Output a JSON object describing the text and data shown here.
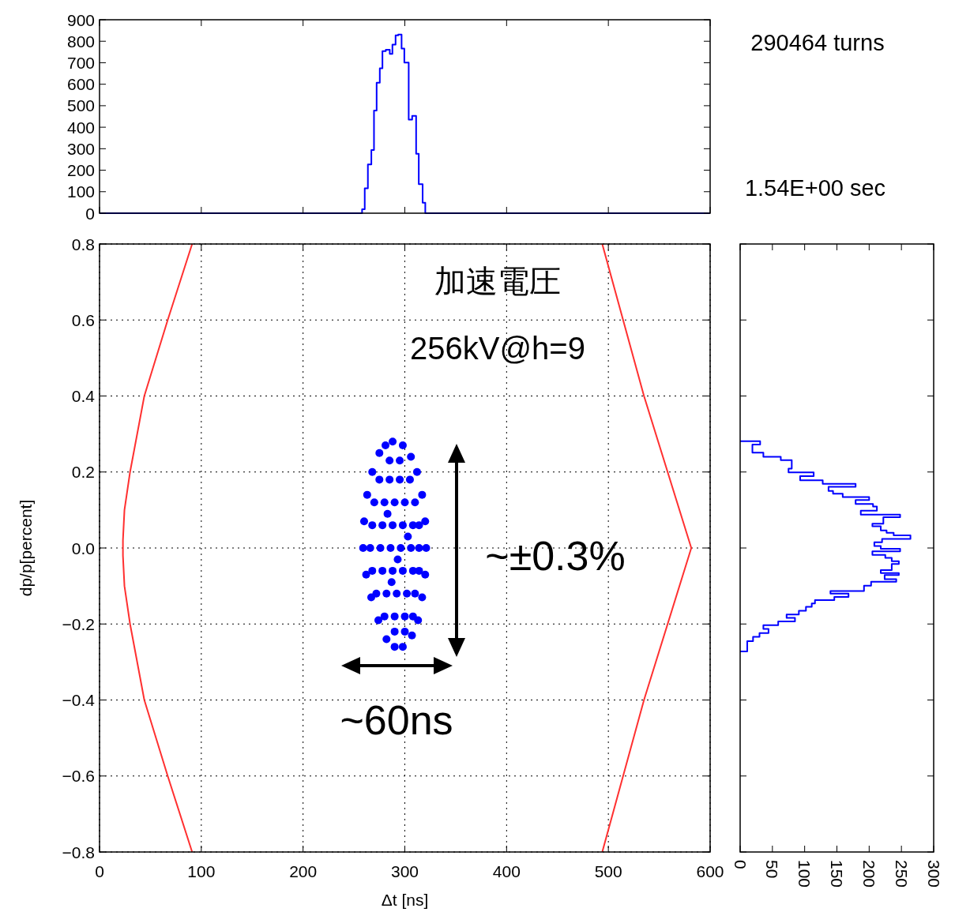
{
  "chart_data": [
    {
      "type": "histogram",
      "color": "#0000ff",
      "bins": [
        0,
        258,
        260.6,
        263.7,
        267.1,
        269.7,
        272.3,
        275.4,
        278,
        281.3,
        285.2,
        287.8,
        290.9,
        293.5,
        296.8,
        299.5,
        303.8,
        307.2,
        311.1,
        313.7,
        317.5,
        320.1,
        600
      ],
      "values": [
        0,
        18,
        116,
        227,
        294,
        478,
        607,
        674,
        754,
        760,
        741,
        784,
        827,
        831,
        766,
        701,
        435,
        453,
        276,
        135,
        49,
        0
      ],
      "xlim": [
        0,
        600
      ],
      "xticks": [
        0,
        100,
        200,
        300,
        400,
        500,
        600
      ],
      "ylim": [
        0,
        900
      ],
      "yticks": [
        0,
        100,
        200,
        300,
        400,
        500,
        600,
        700,
        800,
        900
      ],
      "tick_labels": "y",
      "annotations": [
        "290464 turns",
        "1.54E+00 sec"
      ]
    },
    {
      "type": "scatter",
      "xlabel": "Δt [ns]",
      "ylabel": "dp/p[percent]",
      "grid": true,
      "xlim": [
        0,
        600
      ],
      "xticks": [
        0,
        100,
        200,
        300,
        400,
        500,
        600
      ],
      "ylim": [
        -0.8,
        0.8
      ],
      "yticks": [
        {
          "value": -0.8,
          "label": "−0.8"
        },
        {
          "value": -0.6,
          "label": "−0.6"
        },
        {
          "value": -0.4,
          "label": "−0.4"
        },
        {
          "value": -0.2,
          "label": "−0.2"
        },
        {
          "value": 0,
          "label": "0.0"
        },
        {
          "value": 0.2,
          "label": "0.2"
        },
        {
          "value": 0.4,
          "label": "0.4"
        },
        {
          "value": 0.6,
          "label": "0.6"
        },
        {
          "value": 0.8,
          "label": "0.8"
        }
      ],
      "series": [
        {
          "type": "scatter",
          "marker": "circle",
          "color": "#0000ff",
          "x": [
            288,
            298,
            306,
            312,
            317,
            320,
            321,
            320,
            317,
            313,
            307,
            298,
            290,
            282,
            274,
            267,
            262,
            259,
            260,
            263,
            268,
            275,
            281,
            275,
            285,
            295,
            305,
            270,
            280,
            290,
            300,
            310,
            268,
            278,
            288,
            298,
            308,
            314,
            266,
            276,
            286,
            296,
            306,
            314,
            268,
            278,
            288,
            298,
            308,
            314,
            272,
            282,
            292,
            302,
            310,
            280,
            290,
            300,
            308,
            285,
            295,
            290,
            300,
            283,
            293,
            303,
            287
          ],
          "values": [
            0.28,
            0.27,
            0.24,
            0.2,
            0.14,
            0.07,
            0,
            -0.07,
            -0.13,
            -0.19,
            -0.23,
            -0.26,
            -0.26,
            -0.24,
            -0.19,
            -0.13,
            -0.07,
            0,
            0.07,
            0.14,
            0.2,
            0.25,
            0.27,
            0.18,
            0.18,
            0.18,
            0.18,
            0.12,
            0.12,
            0.12,
            0.12,
            0.12,
            0.06,
            0.06,
            0.06,
            0.06,
            0.06,
            0.06,
            0,
            0,
            0,
            0,
            0,
            0,
            -0.06,
            -0.06,
            -0.06,
            -0.06,
            -0.06,
            -0.06,
            -0.12,
            -0.12,
            -0.12,
            -0.12,
            -0.12,
            -0.18,
            -0.18,
            -0.18,
            -0.18,
            0.23,
            0.23,
            -0.22,
            -0.22,
            0.09,
            -0.03,
            0.03,
            -0.09
          ]
        },
        {
          "type": "line",
          "color": "#ff3030",
          "x": [
            91,
            67,
            44,
            30,
            24.5,
            23,
            23,
            24.5,
            30,
            44,
            67,
            91
          ],
          "values": [
            0.8,
            0.6,
            0.4,
            0.2,
            0.1,
            0.02,
            -0.02,
            -0.1,
            -0.2,
            -0.4,
            -0.6,
            -0.8
          ]
        },
        {
          "type": "line",
          "color": "#ff3030",
          "x": [
            494,
            535,
            581.5,
            535,
            494
          ],
          "values": [
            0.8,
            0.4,
            0,
            -0.4,
            -0.8
          ]
        }
      ],
      "annotations": [
        "加速電圧",
        "256kV@h=9",
        "~±0.3%",
        "~60ns"
      ]
    },
    {
      "type": "histogram",
      "orientation": "horizontal",
      "color": "#0000ff",
      "bins": [
        0.281,
        0.272,
        0.251,
        0.24,
        0.231,
        0.209,
        0.199,
        0.189,
        0.178,
        0.169,
        0.161,
        0.15,
        0.143,
        0.134,
        0.126,
        0.116,
        0.109,
        0.098,
        0.088,
        0.081,
        0.064,
        0.057,
        0.046,
        0.04,
        0.033,
        0.024,
        0.015,
        0.005,
        -0.002,
        -0.009,
        -0.018,
        -0.026,
        -0.035,
        -0.042,
        -0.058,
        -0.066,
        -0.071,
        -0.082,
        -0.089,
        -0.099,
        -0.113,
        -0.12,
        -0.129,
        -0.137,
        -0.146,
        -0.155,
        -0.165,
        -0.175,
        -0.184,
        -0.193,
        -0.203,
        -0.213,
        -0.224,
        -0.234,
        -0.245,
        -0.272
      ],
      "values": [
        31,
        19,
        36,
        63,
        80,
        75,
        114,
        93,
        128,
        179,
        137,
        144,
        159,
        200,
        179,
        206,
        212,
        187,
        248,
        222,
        205,
        218,
        227,
        238,
        264,
        220,
        208,
        218,
        248,
        205,
        225,
        235,
        246,
        235,
        218,
        246,
        224,
        242,
        203,
        192,
        140,
        168,
        146,
        116,
        111,
        102,
        91,
        72,
        85,
        59,
        36,
        44,
        30,
        20,
        11
      ],
      "xlim": [
        0,
        300
      ],
      "xticks": [
        0,
        50,
        100,
        150,
        200,
        250,
        300
      ],
      "ylim": [
        -0.8,
        0.8
      ],
      "yticks": [
        -0.8,
        -0.6,
        -0.4,
        -0.2,
        0,
        0.2,
        0.4,
        0.6,
        0.8
      ],
      "tick_labels": "x"
    }
  ]
}
